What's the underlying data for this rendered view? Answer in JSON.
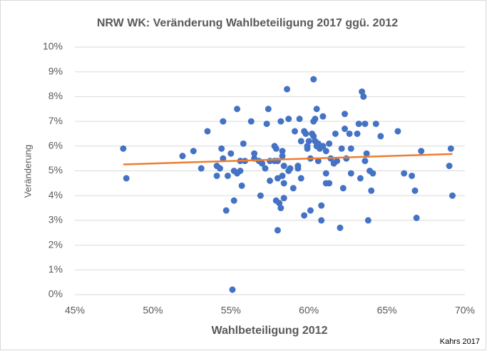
{
  "chart_data": {
    "type": "scatter",
    "title": "NRW WK: Veränderung Wahlbeteiligung 2017 ggü. 2012",
    "x_label": "Wahlbeteiligung 2012",
    "y_label": "Veränderung",
    "source": "Kahrs 2017",
    "color": "#4472c4",
    "x": [
      48.1,
      48.3,
      51.9,
      52.6,
      53.1,
      53.5,
      54.1,
      54.1,
      54.3,
      54.4,
      54.5,
      54.5,
      54.7,
      54.8,
      55.0,
      55.1,
      55.2,
      55.2,
      55.4,
      55.4,
      55.6,
      55.6,
      55.7,
      55.8,
      55.9,
      56.3,
      56.5,
      56.5,
      56.8,
      56.9,
      57.0,
      57.2,
      57.3,
      57.4,
      57.5,
      57.5,
      57.8,
      57.8,
      57.9,
      57.9,
      58.0,
      58.0,
      58.0,
      58.1,
      58.2,
      58.2,
      58.3,
      58.3,
      58.3,
      58.4,
      58.4,
      58.4,
      58.6,
      58.7,
      58.7,
      58.8,
      59.0,
      59.1,
      59.3,
      59.3,
      59.4,
      59.5,
      59.5,
      59.7,
      59.7,
      59.8,
      59.9,
      59.9,
      60.0,
      60.1,
      60.1,
      60.2,
      60.3,
      60.3,
      60.3,
      60.4,
      60.4,
      60.5,
      60.5,
      60.6,
      60.6,
      60.7,
      60.8,
      60.8,
      60.9,
      60.9,
      61.1,
      61.1,
      61.1,
      61.3,
      61.3,
      61.4,
      61.6,
      61.7,
      61.8,
      62.0,
      62.1,
      62.2,
      62.3,
      62.3,
      62.4,
      62.6,
      62.7,
      62.7,
      63.1,
      63.2,
      63.3,
      63.4,
      63.5,
      63.6,
      63.6,
      63.7,
      63.8,
      63.9,
      64.0,
      64.1,
      64.3,
      64.6,
      65.7,
      66.1,
      66.6,
      66.8,
      66.9,
      67.2,
      69.0,
      69.1,
      69.2
    ],
    "values": [
      5.9,
      4.7,
      5.6,
      5.8,
      5.1,
      6.6,
      5.2,
      4.8,
      5.1,
      5.9,
      5.5,
      7.0,
      3.4,
      4.8,
      5.7,
      0.2,
      5.0,
      3.8,
      7.5,
      4.9,
      5.4,
      5.0,
      4.4,
      6.1,
      5.4,
      7.0,
      5.7,
      5.5,
      5.4,
      4.0,
      5.3,
      5.1,
      6.9,
      7.5,
      5.4,
      4.6,
      5.4,
      6.0,
      3.8,
      5.9,
      5.4,
      4.7,
      2.6,
      3.7,
      3.5,
      7.0,
      5.8,
      5.6,
      4.8,
      4.5,
      3.9,
      5.2,
      8.3,
      5.0,
      7.1,
      5.1,
      4.3,
      6.6,
      5.1,
      5.2,
      7.1,
      4.7,
      6.2,
      3.2,
      6.6,
      6.5,
      6.0,
      5.9,
      6.2,
      3.4,
      5.5,
      6.5,
      6.4,
      8.7,
      7.0,
      7.1,
      6.2,
      7.5,
      6.0,
      6.1,
      5.4,
      5.9,
      3.0,
      3.6,
      6.0,
      7.2,
      5.8,
      4.5,
      4.9,
      4.5,
      6.1,
      5.5,
      5.3,
      6.5,
      5.4,
      2.7,
      5.9,
      4.3,
      7.3,
      6.7,
      5.5,
      6.5,
      5.9,
      4.9,
      6.5,
      6.9,
      4.7,
      8.2,
      8.0,
      6.9,
      5.4,
      5.7,
      3.0,
      5.0,
      4.2,
      4.9,
      6.9,
      6.4,
      6.6,
      4.9,
      4.8,
      4.2,
      3.1,
      5.8,
      5.2,
      5.9,
      4.0
    ],
    "trendline": {
      "x": [
        48.1,
        69.2
      ],
      "values": [
        5.26,
        5.68
      ],
      "color": "#ed7d31"
    },
    "xlim": [
      45,
      70
    ],
    "xticks": [
      {
        "value": 45,
        "label": "45%"
      },
      {
        "value": 50,
        "label": "50%"
      },
      {
        "value": 55,
        "label": "55%"
      },
      {
        "value": 60,
        "label": "60%"
      },
      {
        "value": 65,
        "label": "65%"
      },
      {
        "value": 70,
        "label": "70%"
      }
    ],
    "ylim": [
      0,
      10
    ],
    "yticks": [
      {
        "value": 0,
        "label": "0%"
      },
      {
        "value": 1,
        "label": "1%"
      },
      {
        "value": 2,
        "label": "2%"
      },
      {
        "value": 3,
        "label": "3%"
      },
      {
        "value": 4,
        "label": "4%"
      },
      {
        "value": 5,
        "label": "5%"
      },
      {
        "value": 6,
        "label": "6%"
      },
      {
        "value": 7,
        "label": "7%"
      },
      {
        "value": 8,
        "label": "8%"
      },
      {
        "value": 9,
        "label": "9%"
      },
      {
        "value": 10,
        "label": "10%"
      }
    ],
    "grid": true
  }
}
